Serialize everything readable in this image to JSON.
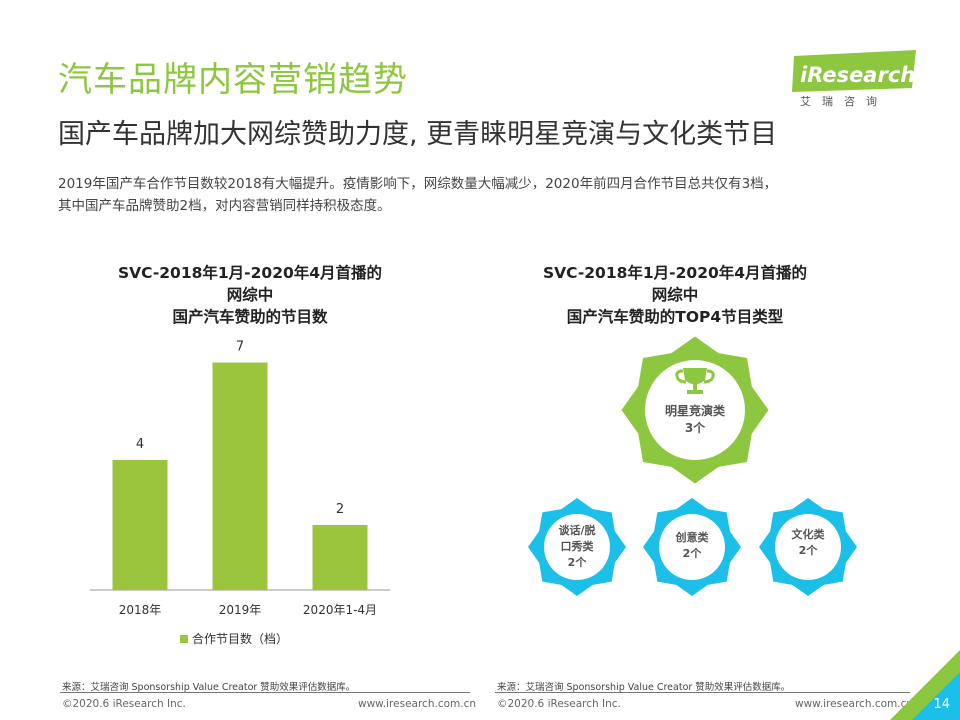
{
  "header": {
    "title": "汽车品牌内容营销趋势",
    "subtitle": "国产车品牌加大网综赞助力度, 更青睐明星竞演与文化类节目",
    "description_lines": [
      "2019年国产车合作节目数较2018有大幅提升。疫情影响下，网综数量大幅减少，2020年前四月合作节目总共仅有3档，",
      "其中国产车品牌赞助2档，对内容营销同样持积极态度。"
    ]
  },
  "logo": {
    "name": "iResearch",
    "sub": "艾瑞咨询"
  },
  "left_panel": {
    "title_lines": [
      "SVC-2018年1月-2020年4月首播的",
      "网综中",
      "国产汽车赞助的节目数"
    ],
    "source": "来源：艾瑞咨询 Sponsorship Value Creator 赞助效果评估数据库。",
    "copyright": "©2020.6 iResearch Inc.",
    "website": "www.iresearch.com.cn"
  },
  "chart_data": {
    "type": "bar",
    "title": "SVC-2018年1月-2020年4月首播的网综中国产汽车赞助的节目数",
    "categories": [
      "2018年",
      "2019年",
      "2020年1-4月"
    ],
    "series": [
      {
        "name": "合作节目数（档）",
        "values": [
          4,
          7,
          2
        ]
      }
    ],
    "ylim": [
      0,
      8
    ],
    "grid": false,
    "legend": "bottom",
    "color": "#9bc53d"
  },
  "right_panel": {
    "title_lines": [
      "SVC-2018年1月-2020年4月首播的",
      "网综中",
      "国产汽车赞助的TOP4节目类型"
    ],
    "badges": [
      {
        "lines": [
          "明星竞演类",
          "3个"
        ],
        "icon": "trophy-icon",
        "color": "#8dc63f"
      },
      {
        "lines": [
          "谈话/脱",
          "口秀类",
          "2个"
        ],
        "color": "#1bbfe8"
      },
      {
        "lines": [
          "创意类",
          "2个"
        ],
        "color": "#1bbfe8"
      },
      {
        "lines": [
          "文化类",
          "2个"
        ],
        "color": "#1bbfe8"
      }
    ],
    "source": "来源：艾瑞咨询 Sponsorship Value Creator 赞助效果评估数据库。",
    "copyright": "©2020.6 iResearch Inc.",
    "website": "www.iresearch.com.cn"
  },
  "page_number": "14",
  "colors": {
    "green": "#8dc63f",
    "blue": "#1bbfe8",
    "bar": "#9bc53d"
  }
}
